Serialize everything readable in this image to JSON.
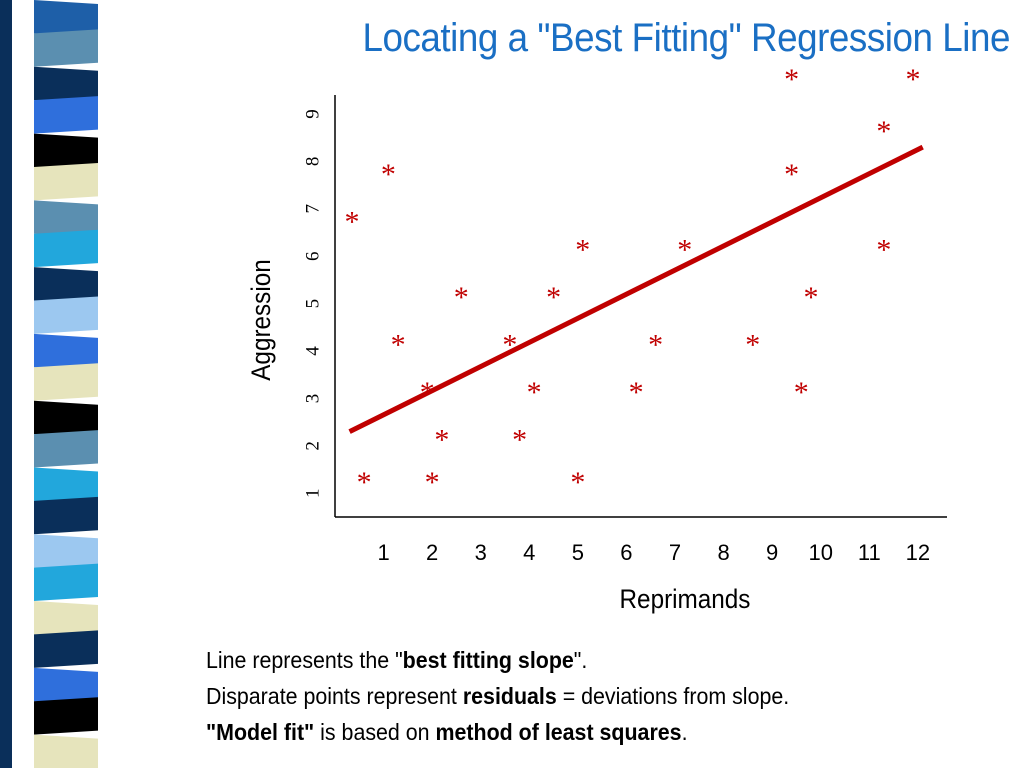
{
  "slide": {
    "title": "Locating a \"Best Fitting\" Regression Line",
    "title_color": "#1a6fc4",
    "caption_lines": [
      [
        {
          "text": "Line represents the \"",
          "bold": false
        },
        {
          "text": "best fitting slope",
          "bold": true
        },
        {
          "text": "\".",
          "bold": false
        }
      ],
      [
        {
          "text": "Disparate points represent ",
          "bold": false
        },
        {
          "text": "residuals",
          "bold": true
        },
        {
          "text": " = deviations from slope.",
          "bold": false
        }
      ],
      [
        {
          "text": "\"Model fit\"",
          "bold": true
        },
        {
          "text": " is based on ",
          "bold": false
        },
        {
          "text": "method of least squares",
          "bold": true
        },
        {
          "text": ".",
          "bold": false
        }
      ]
    ]
  },
  "decoration": {
    "stripe_colors": [
      "#1e5fa8",
      "#5b8fb0",
      "#0a2f5a",
      "#2f6fdc",
      "#000000",
      "#e6e4bc",
      "#5b8fb0",
      "#22a7dc",
      "#0a2f5a",
      "#9cc8f0",
      "#2f6fdc",
      "#e6e4bc",
      "#000000",
      "#5b8fb0",
      "#22a7dc",
      "#0a2f5a",
      "#9cc8f0",
      "#22a7dc",
      "#e6e4bc",
      "#0a2f5a",
      "#2f6fdc",
      "#000000",
      "#e6e4bc"
    ]
  },
  "chart_data": {
    "type": "scatter",
    "title": "",
    "xlabel": "Reprimands",
    "ylabel": "Aggression",
    "x_ticks": [
      1,
      2,
      3,
      4,
      5,
      6,
      7,
      8,
      9,
      10,
      11,
      12
    ],
    "y_ticks": [
      1,
      2,
      3,
      4,
      5,
      6,
      7,
      8,
      9
    ],
    "xlim": [
      0,
      12.6
    ],
    "ylim": [
      0.5,
      9.4
    ],
    "marker": "*",
    "marker_color": "#c00000",
    "line_color": "#c00000",
    "grid": false,
    "series": [
      {
        "points": [
          [
            0.35,
            6.8
          ],
          [
            1.1,
            7.8
          ],
          [
            0.6,
            1.3
          ],
          [
            1.3,
            4.2
          ],
          [
            2.0,
            1.3
          ],
          [
            2.2,
            2.2
          ],
          [
            1.9,
            3.2
          ],
          [
            2.6,
            5.2
          ],
          [
            3.8,
            2.2
          ],
          [
            3.6,
            4.2
          ],
          [
            4.1,
            3.2
          ],
          [
            4.5,
            5.2
          ],
          [
            5.0,
            1.3
          ],
          [
            5.1,
            6.2
          ],
          [
            6.2,
            3.2
          ],
          [
            6.6,
            4.2
          ],
          [
            7.2,
            6.2
          ],
          [
            8.6,
            4.2
          ],
          [
            9.4,
            7.8
          ],
          [
            9.6,
            3.2
          ],
          [
            9.8,
            5.2
          ],
          [
            9.4,
            9.8
          ],
          [
            11.3,
            6.2
          ],
          [
            11.3,
            8.7
          ],
          [
            11.9,
            9.8
          ]
        ]
      }
    ],
    "regression_line": {
      "x": [
        0.3,
        12.1
      ],
      "y": [
        2.3,
        8.3
      ]
    }
  }
}
